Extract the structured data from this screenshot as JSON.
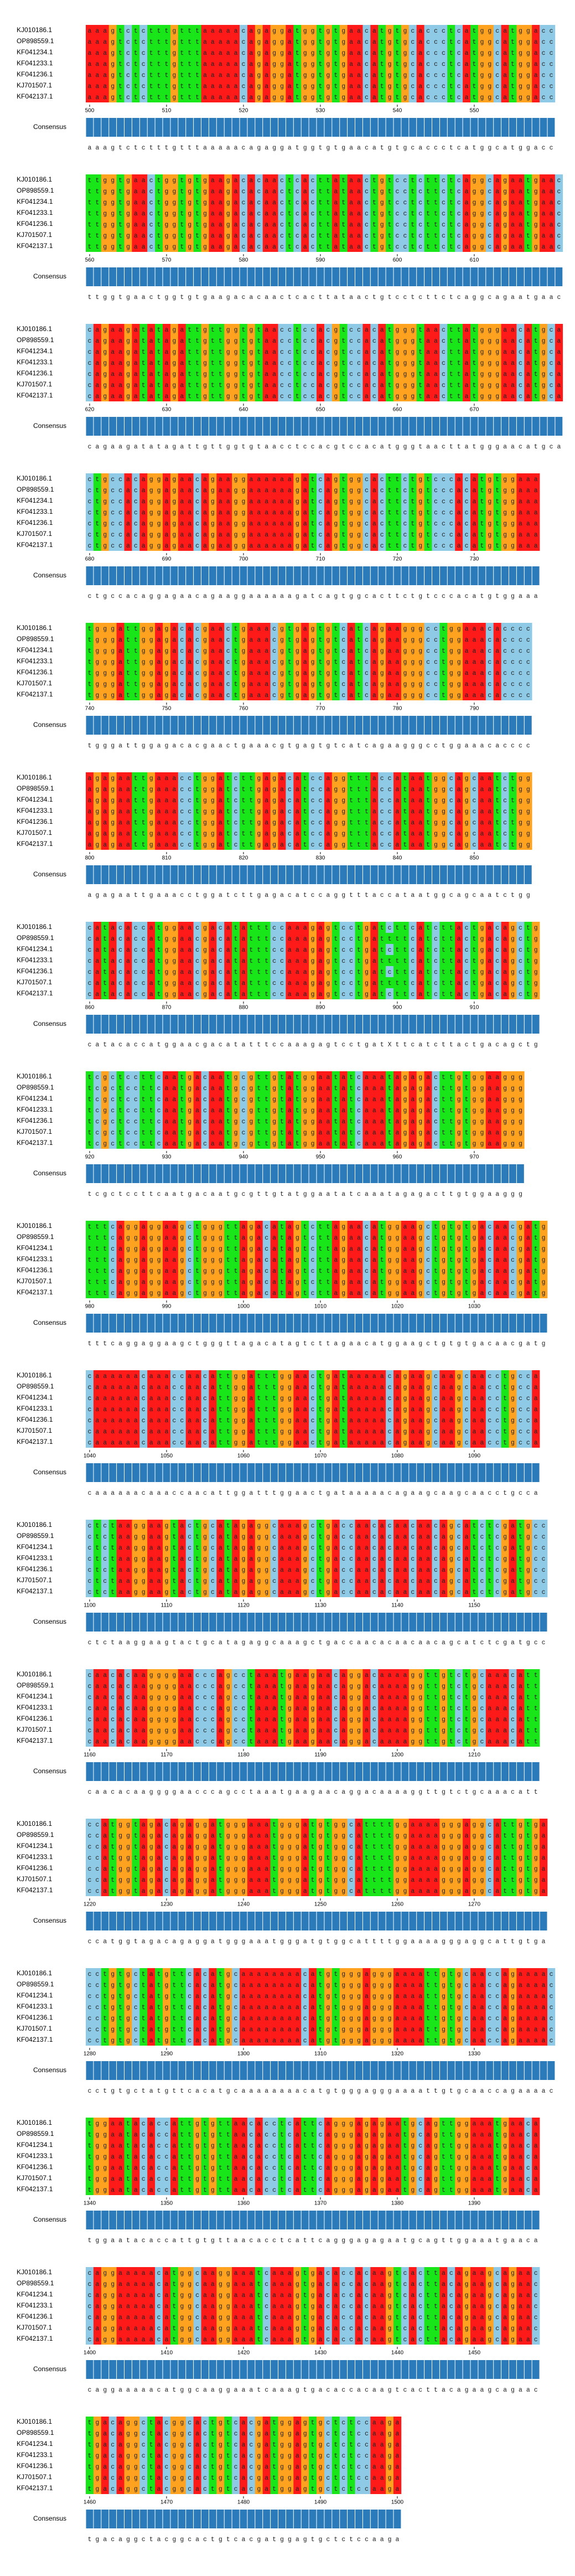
{
  "sequence_names": [
    "KJ010186.1",
    "OP898559.1",
    "KF041234.1",
    "KF041233.1",
    "KF041236.1",
    "KJ701507.1",
    "KF042137.1"
  ],
  "consensus_label": "Consensus",
  "blocks": [
    {
      "ticks": [
        500,
        510,
        520,
        530,
        540,
        550
      ],
      "consensus": "aaagtctctttgtttaaaaacagaggatggtgtgaacatgtgcaccctcatggcatggacc",
      "rows": [
        "aaagtctctttgtttaaaaacagaggatggtgtgaacatgtgcaccctcatggcatggacc",
        "aaagtctctttgtttaaaaacagaggatggtgtgaacatgtgcaccctcatggcatggacc",
        "aaagtctctttgtttaaaaacagaggatggtgtgaacatgtgcaccctcatggcatggacc",
        "aaagtctctttgtttaaaaacagaggatggtgtgaacatgtgcaccctcatggcatggacc",
        "aaagtctctttgtttaaaaacagaggatggtgtgaacatgtgcaccctcatggcatggacc",
        "aaagtctctttgtttaaaaacagaggatggtgtgaacatgtgcaccctcatggcatggacc",
        "aaagtctctttgtttaaaaacagaggatggtgtgaacatgtgcaccctcatggcatggacc"
      ]
    },
    {
      "ticks": [
        560,
        570,
        580,
        590,
        600,
        610
      ],
      "consensus": "ttggtgaactggtgtgaagacacaactcacttataactgtcctcttctcaggcagaatgaac",
      "rows": [
        "ttggtgaactggtgtgaagacacaactcacttataactgtcctcttctcaggcagaatgaac",
        "ttggtgaactggtgtgaagacacaactcacttataactgtcctcttctcaggcagaatgaac",
        "ttggtgaactggtgtgaagacacaactcacttataactgtcctcttctcaggcagaatgaac",
        "ttggtgaactggtgtgaagacacaactcacttataactgtcctcttctcaggcagaatgaac",
        "ttggtgaactggtgtgaagacacaactcacttataactgtcctcttctcaggcagaatgaac",
        "ttggtgaactggtgtgaagacacaactcacttataactgtcctcttctcaggcagaatgaac",
        "ttggtgaactggtgtgaagacacaactcacttataactgtcctcttctcaggcagaatgaac"
      ]
    },
    {
      "ticks": [
        620,
        630,
        640,
        650,
        660,
        670
      ],
      "consensus": "cagaagatatagattgttggtgtaacctccacgtccacatgggtaacttatgggaacatgca",
      "rows": [
        "cagaagatatagattgttggtgtaacctccacgtccacatgggtaacttatgggaacatgca",
        "cagaagatatagattgttggtgtaacctccacgtccacatgggtaacttatgggaacatgca",
        "cagaagatatagattgttggtgtaacctccacgtccacatgggtaacttatgggaacatgca",
        "cagaagatatagattgttggtgtaacctccacgtccacatgggtaacttatgggaacatgca",
        "cagaagatatagattgttggtgtaacctccacgtccacatgggtaacttatgggaacatgca",
        "cagaagatatagattgttggtgtaacctccacgtccacatgggtaacttatgggaacatgca",
        "cagaagatatagattgttggtgtaacctccacgtccacatgggtaacttatgggaacatgca"
      ]
    },
    {
      "ticks": [
        680,
        690,
        700,
        710,
        720,
        730
      ],
      "consensus": "ctgccacaggagaacagaaggaaaaaagatcagtggcacttctgtcccacatgtggaaa",
      "rows": [
        "ctgccacaggagaacagaaggaaaaaagatcagtggcacttctgtcccacatgtggaaa",
        "ctgccacaggagaacagaaggaaaaaagatcagtggcacttctgtcccacatgtggaaa",
        "ctgccacaggagaacagaaggaaaaaagatcagtggcacttctgtcccacatgtggaaa",
        "ctgccacaggagaacagaaggaaaaaagatcagtggcacttctgtcccacatgtggaaa",
        "ctgccacaggagaacagaaggaaaaaagatcagtggcacttctgtcccacatgtggaaa",
        "ctgccacaggagaacagaaggaaaaaagatcagtggcacttctgtcccacatgtggaaa",
        "ctgccacaggagaacagaaggaaaaaagatcagtggcacttctgtcccacatgtggaaa"
      ]
    },
    {
      "ticks": [
        740,
        750,
        760,
        770,
        780,
        790
      ],
      "consensus": "tgggattggagacacgaactgaaacgtgagtgtcatcagaagggcctggaaacacccc",
      "rows": [
        "tgggattggagacacgaactgaaacgtgagtgtcatcagaagggcctggaaacacccc",
        "tgggattggagacacgaactgaaacgtgagtgtcatcagaagggcctggaaacacccc",
        "tgggattggagacacgaactgaaacgtgagtgtcatcagaagggcctggaaacacccc",
        "tgggattggagacacgaactgaaacgtgagtgtcatcagaagggcctggaaacacccc",
        "tgggattggagacacgaactgaaacgtgagtgtcatcagaagggcctggaaacacccc",
        "tgggattggagacacgaactgaaacgtgagtgtcatcagaagggcctggaaacacccc",
        "tgggattggagacacgaactgaaacgtgagtgtcatcagaagggcctggaaacacccc"
      ]
    },
    {
      "ticks": [
        800,
        810,
        820,
        830,
        840,
        850
      ],
      "consensus": "agagaattgaaacctggatcttgagacatccaggtttaccataatggcagcaatctgg",
      "rows": [
        "agagaattgaaacctggatcttgagacatccaggtttaccataatggcagcaatctgg",
        "agagaattgaaacctggatcttgagacatccaggtttaccataatggcagcaatctgg",
        "agagaattgaaacctggatcttgagacatccaggtttaccataatggcagcaatctgg",
        "agagaattgaaacctggatcttgagacatccaggtttaccataatggcagcaatctgg",
        "agagaattgaaacctggatcttgagacatccaggtttaccataatggcagcaatctgg",
        "agagaattgaaacctggatcttgagacatccaggtttaccataatggcagcaatctgg",
        "agagaattgaaacctggatcttgagacatccaggtttaccataatggcagcaatctgg"
      ]
    },
    {
      "ticks": [
        860,
        870,
        880,
        890,
        900,
        910
      ],
      "consensus": "catacaccatggaacgacatatttccaaagagtcctgatXttcatcttactgacagctg",
      "rows": [
        "catacaccatggaacgacatatttccaaagagtcctgatcttcatcttactgacagctg",
        "catacaccatggaacgacatatttccaaagagtcctgattttcatcttactgacagctg",
        "catacaccatggaacgacatatttccaaagagtcctgatcttcatcttactgacagctg",
        "catacaccatggaacgacatatttccaaagagtcctgattttcatcttactgacagctg",
        "catacaccatggaacgacatatttccaaagagtcctgatcttcatcttactgacagctg",
        "catacaccatggaacgacatatttccaaagagtcctgattttcatcttactgacagctg",
        "catacaccatggaacgacatatttccaaagagtcctgatcttcatcttactgacagctg"
      ]
    },
    {
      "ticks": [
        920,
        930,
        940,
        950,
        960,
        970
      ],
      "consensus": "tcgctccttcaatgacaatgcgttgtatggaatatcaaatagagacttgtggaaggg",
      "rows": [
        "tcgctccttcaatgacaatgcgttgtatggaatatcaaatagagacttgtggaaggg",
        "tcgctccttcaatgacaatgcgttgtatggaatatcaaatagagacttgtggaaggg",
        "tcgctccttcaatgacaatgcgttgtatggaatatcaaatagagacttgtggaaggg",
        "tcgctccttcaatgacaatgcgttgtatggaatatcaaatagagacttgtggaaggg",
        "tcgctccttcaatgacaatgcgttgtatggaatatcaaatagagacttgtggaaggg",
        "tcgctccttcaatgacaatgcgttgtatggaatatcaaatagagacttgtggaaggg",
        "tcgctccttcaatgacaatgcgttgtatggaatatcaaatagagacttgtggaaggg"
      ]
    },
    {
      "ticks": [
        980,
        990,
        1000,
        1010,
        1020,
        1030
      ],
      "consensus": "tttcaggaggaagctgggttagacatagtcttagaacatggaagctgtgtgacaacgatg",
      "rows": [
        "tttcaggaggaagctgggttagacatagtcttagaacatggaagctgtgtgacaacgatg",
        "tttcaggaggaagctgggttagacatagtcttagaacatggaagctgtgtgacaacgatg",
        "tttcaggaggaagctgggttagacatagtcttagaacatggaagctgtgtgacaacgatg",
        "tttcaggaggaagctgggttagacatagtcttagaacatggaagctgtgtgacaacgatg",
        "tttcaggaggaagctgggttagacatagtcttagaacatggaagctgtgtgacaacgatg",
        "tttcaggaggaagctgggttagacatagtcttagaacatggaagctgtgtgacaacgatg",
        "tttcaggaggaagctgggttagacatagtcttagaacatggaagctgtgtgacaacgatg"
      ]
    },
    {
      "ticks": [
        1040,
        1050,
        1060,
        1070,
        1080,
        1090
      ],
      "consensus": "caaaaaacaaaccaacattggatttggaactgataaaaacagaagcaagcaacctgcca",
      "rows": [
        "caaaaaacaaaccaacattggatttggaactgataaaaacagaagcaagcaacctgcca",
        "caaaaaacaaaccaacattggatttggaactgataaaaacagaagcaagcaacctgcca",
        "caaaaaacaaaccaacattggatttggaactgataaaaacagaagcaagcaacctgcca",
        "caaaaaacaaaccaacattggatttggaactgataaaaacagaagcaagcaacctgcca",
        "caaaaaacaaaccaacattggatttggaactgataaaaacagaagcaagcaacctgcca",
        "caaaaaacaaaccaacattggatttggaactgataaaaacagaagcaagcaacctgcca",
        "caaaaaacaaaccaacattggatttggaactgataaaaacagaagcaagcaacctgcca"
      ]
    },
    {
      "ticks": [
        1100,
        1110,
        1120,
        1130,
        1140,
        1150
      ],
      "consensus": "ctctaaggaagtactgcatagaggcaaagctgaccaacacaacaacagcatctcgatgcc",
      "rows": [
        "ctctaaggaagtactgcatagaggcaaagctgaccaacacaacaacagcatctcgatgcc",
        "ctctaaggaagtactgcatagaggcaaagctgaccaacacaacaacagcatctcgatgcc",
        "ctctaaggaagtactgcatagaggcaaagctgaccaacacaacaacagcatctcgatgcc",
        "ctctaaggaagtactgcatagaggcaaagctgaccaacacaacaacagcatctcgatgcc",
        "ctctaaggaagtactgcatagaggcaaagctgaccaacacaacaacagcatctcgatgcc",
        "ctctaaggaagtactgcatagaggcaaagctgaccaacacaacaacagcatctcgatgcc",
        "ctctaaggaagtactgcatagaggcaaagctgaccaacacaacaacagcatctcgatgcc"
      ]
    },
    {
      "ticks": [
        1160,
        1170,
        1180,
        1190,
        1200,
        1210
      ],
      "consensus": "caacacaaggggaacccagcctaaatgaagaacaggacaaaaggttgtctgcaaacatt",
      "rows": [
        "caacacaaggggaacccagcctaaatgaagaacaggacaaaaggttgtctgcaaacatt",
        "caacacaaggggaacccagcctaaatgaagaacaggacaaaaggttgtctgcaaacatt",
        "caacacaaggggaacccagcctaaatgaagaacaggacaaaaggttgtctgcaaacatt",
        "caacacaaggggaacccagcctaaatgaagaacaggacaaaaggttgtctgcaaacatt",
        "caacacaaggggaacccagcctaaatgaagaacaggacaaaaggttgtctgcaaacatt",
        "caacacaaggggaacccagcctaaatgaagaacaggacaaaaggttgtctgcaaacatt",
        "caacacaaggggaacccagcctaaatgaagaacaggacaaaaggttgtctgcaaacatt"
      ]
    },
    {
      "ticks": [
        1220,
        1230,
        1240,
        1250,
        1260,
        1270
      ],
      "consensus": "ccatggtagacagaggatgggaaatgggatgtggcattttggaaaagggaggcattgtga",
      "rows": [
        "ccatggtagacagaggatgggaaatgggatgtggcattttggaaaagggaggcattgtga",
        "ccatggtagacagaggatgggaaatgggatgtggcattttggaaaagggaggcattgtga",
        "ccatggtagacagaggatgggaaatgggatgtggcattttggaaaagggaggcattgtga",
        "ccatggtagacagaggatgggaaatgggatgtggcattttggaaaagggaggcattgtga",
        "ccatggtagacagaggatgggaaatgggatgtggcattttggaaaagggaggcattgtga",
        "ccatggtagacagaggatgggaaatgggatgtggcattttggaaaagggaggcattgtga",
        "ccatggtagacagaggatgggaaatgggatgtggcattttggaaaagggaggcattgtga"
      ]
    },
    {
      "ticks": [
        1280,
        1290,
        1300,
        1310,
        1320,
        1330
      ],
      "consensus": "cctgtgctatgttcacatgcaaaaaaaacatgtgggagggaaaattgtgcaaccagaaaac",
      "rows": [
        "cctgtgctatgttcacatgcaaaaaaaacatgtgggagggaaaattgtgcaaccagaaaac",
        "cctgtgctatgttcacatgcaaaaaaaacatgtgggagggaaaattgtgcaaccagaaaac",
        "cctgtgctatgttcacatgcaaaaaaaacatgtgggagggaaaattgtgcaaccagaaaac",
        "cctgtgctatgttcacatgcaaaaaaaacatgtgggagggaaaattgtgcaaccagaaaac",
        "cctgtgctatgttcacatgcaaaaaaaacatgtgggagggaaaattgtgcaaccagaaaac",
        "cctgtgctatgttcacatgcaaaaaaaacatgtgggagggaaaattgtgcaaccagaaaac",
        "cctgtgctatgttcacatgcaaaaaaaacatgtgggagggaaaattgtgcaaccagaaaac"
      ]
    },
    {
      "ticks": [
        1340,
        1350,
        1360,
        1370,
        1380,
        1390
      ],
      "consensus": "tggaatacaccattgtgttaacacctcattcagggagagaatgcagttggaaatgaaca",
      "rows": [
        "tggaatacaccattgtgttaacacctcattcagggagagaatgcagttggaaatgaaca",
        "tggaatacaccattgtgttaacacctcattcagggagagaatgcagttggaaatgaaca",
        "tggaatacaccattgtgttaacacctcattcagggagagaatgcagttggaaatgaaca",
        "tggaatacaccattgtgttaacacctcattcagggagagaatgcagttggaaatgaaca",
        "tggaatacaccattgtgttaacacctcattcagggagagaatgcagttggaaatgaaca",
        "tggaatacaccattgtgttaacacctcattcagggagagaatgcagttggaaatgaaca",
        "tggaatacaccattgtgttaacacctcattcagggagagaatgcagttggaaatgaaca"
      ]
    },
    {
      "ticks": [
        1400,
        1410,
        1420,
        1430,
        1440,
        1450
      ],
      "consensus": "caggaaaaacatggcaaggaaatcaaagtgacaccacaagtcacttacagaagcagaac",
      "rows": [
        "caggaaaaacatggcaaggaaatcaaagtgacaccacaagtcacttacagaagcagaac",
        "caggaaaaacatggcaaggaaatcaaagtgacaccacaagtcacttacagaagcagaac",
        "caggaaaaacatggcaaggaaatcaaagtgacaccacaagtcacttacagaagcagaac",
        "caggaaaaacatggcaaggaaatcaaagtgacaccacaagtcacttacagaagcagaac",
        "caggaaaaacatggcaaggaaatcaaagtgacaccacaagtcacttacagaagcagaac",
        "caggaaaaacatggcaaggaaatcaaagtgacaccacaagtcacttacagaagcagaac",
        "caggaaaaacatggcaaggaaatcaaagtgacaccacaagtcacttacagaagcagaac"
      ]
    },
    {
      "ticks": [
        1460,
        1470,
        1480,
        1490,
        1500
      ],
      "consensus": "tgacaggctacggcactgtcacgatggagtgctctccaaga",
      "rows": [
        "tgacaggctacggcactgtcacgatggagtgctctccaaga",
        "tgacaggctacggcactgtcacgatggagtgctctccaaga",
        "tgacaggctacggcactgtcacgatggagtgctctccaaga",
        "tgacaggctacggcactgtcacgatggagtgctctccaaga",
        "tgacaggctacggcactgtcacgatggagtgctctccaaga",
        "tgacaggctacggcactgtcacgatggagtgctctccaaga",
        "tgacaggctacggcactgtcacgatggagtgctctccaaga"
      ]
    }
  ]
}
